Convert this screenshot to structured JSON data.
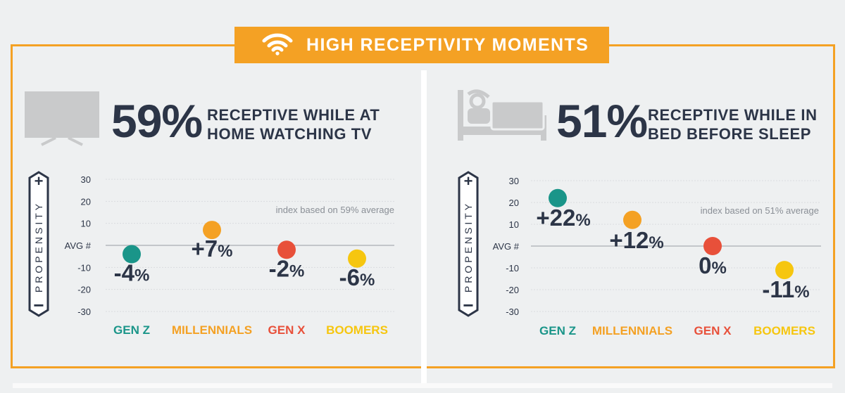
{
  "banner": {
    "title": "HIGH RECEPTIVITY MOMENTS",
    "icon": "wifi-icon"
  },
  "colors": {
    "accent": "#f4a124",
    "gen_z": "#1a9589",
    "millennials": "#f4a124",
    "gen_x": "#e8503a",
    "boomers": "#f6c60f",
    "text": "#2c3547"
  },
  "panels": [
    {
      "icon": "tv-icon",
      "percent": "59%",
      "headline_line1": "RECEPTIVE WHILE AT",
      "headline_line2": "HOME WATCHING TV",
      "axis_title": "PROPENSITY",
      "plus": "+",
      "minus": "−",
      "note": "index based on 59% average"
    },
    {
      "icon": "bed-icon",
      "percent": "51%",
      "headline_line1": "RECEPTIVE WHILE IN",
      "headline_line2": "BED BEFORE SLEEP",
      "axis_title": "PROPENSITY",
      "plus": "+",
      "minus": "−",
      "note": "index based on 51% average"
    }
  ],
  "chart_data": [
    {
      "type": "scatter",
      "title": "RECEPTIVE WHILE AT HOME WATCHING TV",
      "ylabel": "PROPENSITY",
      "yticks": [
        "30",
        "20",
        "10",
        "AVG #",
        "-10",
        "-20",
        "-30"
      ],
      "ylim": [
        -30,
        30
      ],
      "categories": [
        "GEN Z",
        "MILLENNIALS",
        "GEN X",
        "BOOMERS"
      ],
      "values": [
        -4,
        7,
        -2,
        -6
      ],
      "labels": [
        "-4%",
        "+7%",
        "-2%",
        "-6%"
      ],
      "colors": [
        "#1a9589",
        "#f4a124",
        "#e8503a",
        "#f6c60f"
      ],
      "annotation": "index based on 59% average"
    },
    {
      "type": "scatter",
      "title": "RECEPTIVE WHILE IN BED BEFORE SLEEP",
      "ylabel": "PROPENSITY",
      "yticks": [
        "30",
        "20",
        "10",
        "AVG #",
        "-10",
        "-20",
        "-30"
      ],
      "ylim": [
        -30,
        30
      ],
      "categories": [
        "GEN Z",
        "MILLENNIALS",
        "GEN X",
        "BOOMERS"
      ],
      "values": [
        22,
        12,
        0,
        -11
      ],
      "labels": [
        "+22%",
        "+12%",
        "0%",
        "-11%"
      ],
      "colors": [
        "#1a9589",
        "#f4a124",
        "#e8503a",
        "#f6c60f"
      ],
      "annotation": "index based on 51% average"
    }
  ]
}
